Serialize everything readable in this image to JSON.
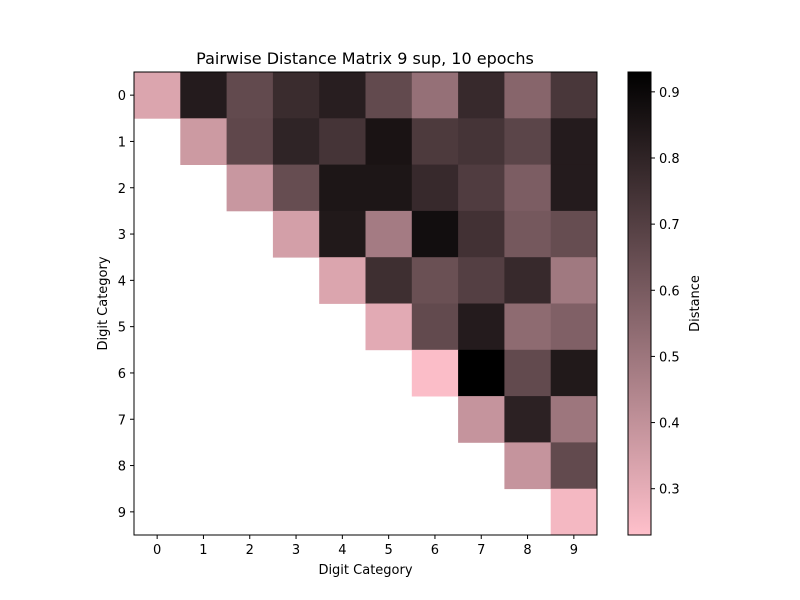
{
  "chart_data": {
    "type": "heatmap",
    "title": "Pairwise Distance Matrix 9 sup, 10 epochs",
    "xlabel": "Digit Category",
    "ylabel": "Digit Category",
    "x_categories": [
      "0",
      "1",
      "2",
      "3",
      "4",
      "5",
      "6",
      "7",
      "8",
      "9"
    ],
    "y_categories": [
      "0",
      "1",
      "2",
      "3",
      "4",
      "5",
      "6",
      "7",
      "8",
      "9"
    ],
    "matrix": [
      [
        0.33,
        0.83,
        0.66,
        0.77,
        0.82,
        0.66,
        0.52,
        0.78,
        0.56,
        0.73
      ],
      [
        null,
        0.37,
        0.67,
        0.8,
        0.74,
        0.86,
        0.72,
        0.74,
        0.68,
        0.83
      ],
      [
        null,
        null,
        0.38,
        0.65,
        0.85,
        0.85,
        0.78,
        0.71,
        0.59,
        0.83
      ],
      [
        null,
        null,
        null,
        0.35,
        0.84,
        0.48,
        0.88,
        0.75,
        0.61,
        0.65
      ],
      [
        null,
        null,
        null,
        null,
        0.33,
        0.76,
        0.64,
        0.7,
        0.78,
        0.49
      ],
      [
        null,
        null,
        null,
        null,
        null,
        0.31,
        0.66,
        0.83,
        0.54,
        0.58
      ],
      [
        null,
        null,
        null,
        null,
        null,
        null,
        0.24,
        0.93,
        0.66,
        0.84
      ],
      [
        null,
        null,
        null,
        null,
        null,
        null,
        null,
        0.39,
        0.81,
        0.5
      ],
      [
        null,
        null,
        null,
        null,
        null,
        null,
        null,
        null,
        0.39,
        0.66
      ],
      [
        null,
        null,
        null,
        null,
        null,
        null,
        null,
        null,
        null,
        0.26
      ]
    ],
    "colorbar": {
      "label": "Distance",
      "min": 0.23,
      "max": 0.93,
      "ticks": [
        0.3,
        0.4,
        0.5,
        0.6,
        0.7,
        0.8,
        0.9
      ],
      "colors": [
        "#ffc0cb",
        "#000000"
      ]
    }
  }
}
